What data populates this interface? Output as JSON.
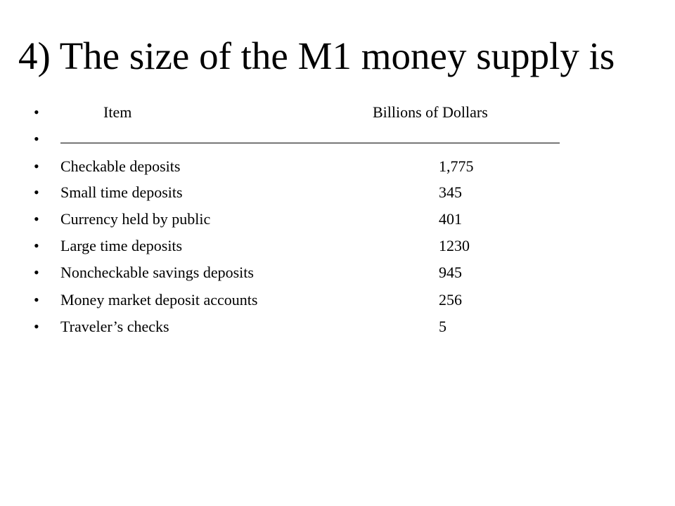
{
  "slide": {
    "title": "4) The size of the M1 money supply is",
    "header": {
      "item": "Item",
      "amount": "Billions of Dollars"
    },
    "bullet_char": "•",
    "rows": [
      {
        "label": "Checkable deposits",
        "value": "1,775"
      },
      {
        "label": "Small time deposits",
        "value": "345"
      },
      {
        "label": "Currency held by public",
        "value": "401"
      },
      {
        "label": "Large time deposits",
        "value": "1230"
      },
      {
        "label": "Noncheckable savings deposits",
        "value": "945"
      },
      {
        "label": "Money market deposit accounts",
        "value": "256"
      },
      {
        "label": "Traveler’s checks",
        "value": "5"
      }
    ]
  }
}
